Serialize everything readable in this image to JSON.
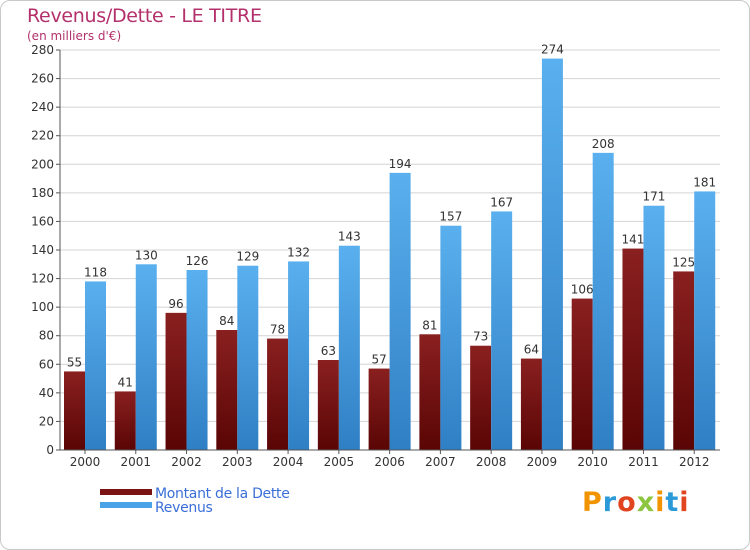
{
  "header": {
    "title": "Revenus/Dette - LE TITRE",
    "subtitle": "(en milliers d'€)"
  },
  "colors": {
    "debt": "#7a1414",
    "revenue": "#4aa3e6",
    "grid": "#d4d4d4",
    "title": "#b3306b"
  },
  "chart_data": {
    "type": "bar",
    "title": "Revenus/Dette - LE TITRE",
    "ylabel": "(en milliers d'€)",
    "xlabel": "",
    "ylim": [
      0,
      280
    ],
    "yticks": [
      0,
      20,
      40,
      60,
      80,
      100,
      120,
      140,
      160,
      180,
      200,
      220,
      240,
      260,
      280
    ],
    "categories": [
      "2000",
      "2001",
      "2002",
      "2003",
      "2004",
      "2005",
      "2006",
      "2007",
      "2008",
      "2009",
      "2010",
      "2011",
      "2012"
    ],
    "series": [
      {
        "name": "Montant de la Dette",
        "values": [
          55,
          41,
          96,
          84,
          78,
          63,
          57,
          81,
          73,
          64,
          106,
          141,
          125
        ]
      },
      {
        "name": "Revenus",
        "values": [
          118,
          130,
          126,
          129,
          132,
          143,
          194,
          157,
          167,
          274,
          208,
          171,
          181
        ]
      }
    ],
    "legend": "bottom-left",
    "grid": true
  },
  "legend": {
    "items": [
      "Montant de la Dette",
      "Revenus"
    ]
  },
  "logo": {
    "text": "Proxiti",
    "icon": "proxiti-logo"
  }
}
